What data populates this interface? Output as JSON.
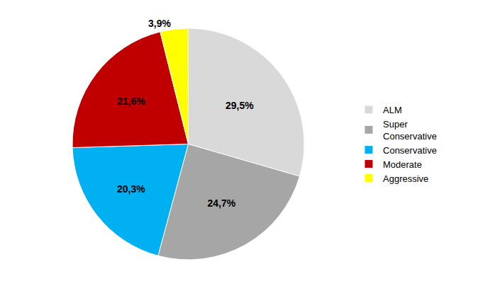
{
  "chart_data": {
    "type": "pie",
    "categories": [
      "ALM",
      "Super\nConservative",
      "Conservative",
      "Moderate",
      "Aggressive"
    ],
    "values": [
      29.5,
      24.7,
      20.3,
      21.6,
      3.9
    ],
    "value_labels": [
      "29,5%",
      "24,7%",
      "20,3%",
      "21,6%",
      "3,9%"
    ],
    "colors": [
      "#d9d9d9",
      "#a6a6a6",
      "#00b0f0",
      "#c00000",
      "#ffff00"
    ],
    "data_labels": true,
    "legend": "right"
  }
}
